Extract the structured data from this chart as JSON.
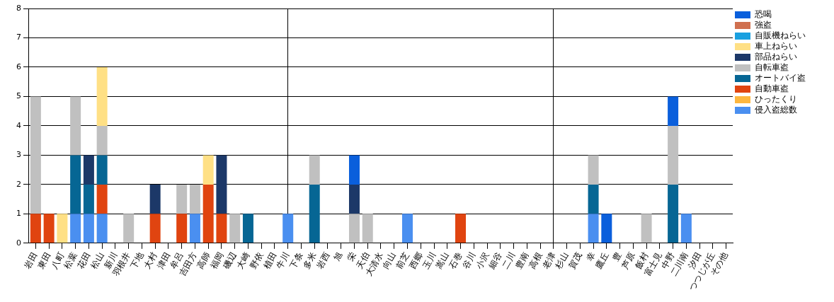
{
  "chart_data": {
    "type": "bar",
    "stacked": true,
    "grid": true,
    "legend": "top right",
    "ylim": [
      0,
      8
    ],
    "yticks": [
      0,
      1,
      2,
      3,
      4,
      5,
      6,
      7,
      8
    ],
    "categories": [
      "岩田",
      "東田",
      "八町",
      "松葉",
      "花田",
      "松山",
      "新川",
      "羽根井",
      "下地",
      "大村",
      "津田",
      "牟呂",
      "吉田方",
      "高師",
      "福岡",
      "磯辺",
      "大崎",
      "野依",
      "植田",
      "牛川",
      "下条",
      "多米",
      "岩西",
      "旭",
      "栄",
      "天伯",
      "大清水",
      "向山",
      "前芝",
      "西郷",
      "玉川",
      "嵩山",
      "石巻",
      "谷川",
      "小沢",
      "細谷",
      "二川",
      "豊南",
      "高根",
      "老津",
      "杉山",
      "賀茂",
      "幸",
      "鷹丘",
      "豊",
      "芦原",
      "飯村",
      "富士見",
      "中野",
      "二川南",
      "汐田",
      "つつじが丘",
      "その他"
    ],
    "series": [
      {
        "name": "侵入盗総数",
        "color": "#4a8ff0",
        "values": [
          0,
          0,
          0,
          1,
          1,
          1,
          0,
          0,
          0,
          0,
          0,
          0,
          1,
          0,
          0,
          0,
          0,
          0,
          0,
          1,
          0,
          0,
          0,
          0,
          0,
          0,
          0,
          0,
          1,
          0,
          0,
          0,
          0,
          0,
          0,
          0,
          0,
          0,
          0,
          0,
          0,
          0,
          1,
          0,
          0,
          0,
          0,
          0,
          0,
          1,
          0,
          0,
          0
        ]
      },
      {
        "name": "ひったくり",
        "color": "#fdb740",
        "values": [
          0,
          0,
          0,
          0,
          0,
          0,
          0,
          0,
          0,
          0,
          0,
          0,
          0,
          0,
          0,
          0,
          0,
          0,
          0,
          0,
          0,
          0,
          0,
          0,
          0,
          0,
          0,
          0,
          0,
          0,
          0,
          0,
          0,
          0,
          0,
          0,
          0,
          0,
          0,
          0,
          0,
          0,
          0,
          0,
          0,
          0,
          0,
          0,
          0,
          0,
          0,
          0,
          0
        ]
      },
      {
        "name": "自動車盗",
        "color": "#e04410",
        "values": [
          1,
          1,
          0,
          0,
          0,
          1,
          0,
          0,
          0,
          1,
          0,
          1,
          0,
          2,
          1,
          0,
          0,
          0,
          0,
          0,
          0,
          0,
          0,
          0,
          0,
          0,
          0,
          0,
          0,
          0,
          0,
          0,
          1,
          0,
          0,
          0,
          0,
          0,
          0,
          0,
          0,
          0,
          0,
          0,
          0,
          0,
          0,
          0,
          0,
          0,
          0,
          0,
          0
        ]
      },
      {
        "name": "オートバイ盗",
        "color": "#066694",
        "values": [
          0,
          0,
          0,
          2,
          1,
          1,
          0,
          0,
          0,
          0,
          0,
          0,
          0,
          0,
          0,
          0,
          1,
          0,
          0,
          0,
          0,
          2,
          0,
          0,
          0,
          0,
          0,
          0,
          0,
          0,
          0,
          0,
          0,
          0,
          0,
          0,
          0,
          0,
          0,
          0,
          0,
          0,
          1,
          0,
          0,
          0,
          0,
          0,
          2,
          0,
          0,
          0,
          0
        ]
      },
      {
        "name": "自転車盗",
        "color": "#c0c0c0",
        "values": [
          4,
          0,
          0,
          2,
          0,
          1,
          0,
          1,
          0,
          0,
          0,
          1,
          1,
          0,
          0,
          1,
          0,
          0,
          0,
          0,
          0,
          1,
          0,
          0,
          1,
          1,
          0,
          0,
          0,
          0,
          0,
          0,
          0,
          0,
          0,
          0,
          0,
          0,
          0,
          0,
          0,
          0,
          1,
          0,
          0,
          0,
          1,
          0,
          2,
          0,
          0,
          0,
          0
        ]
      },
      {
        "name": "部品ねらい",
        "color": "#1c3868",
        "values": [
          0,
          0,
          0,
          0,
          1,
          0,
          0,
          0,
          0,
          1,
          0,
          0,
          0,
          0,
          2,
          0,
          0,
          0,
          0,
          0,
          0,
          0,
          0,
          0,
          1,
          0,
          0,
          0,
          0,
          0,
          0,
          0,
          0,
          0,
          0,
          0,
          0,
          0,
          0,
          0,
          0,
          0,
          0,
          0,
          0,
          0,
          0,
          0,
          0,
          0,
          0,
          0,
          0
        ]
      },
      {
        "name": "車上ねらい",
        "color": "#ffe085",
        "values": [
          0,
          0,
          1,
          0,
          0,
          2,
          0,
          0,
          0,
          0,
          0,
          0,
          0,
          1,
          0,
          0,
          0,
          0,
          0,
          0,
          0,
          0,
          0,
          0,
          0,
          0,
          0,
          0,
          0,
          0,
          0,
          0,
          0,
          0,
          0,
          0,
          0,
          0,
          0,
          0,
          0,
          0,
          0,
          0,
          0,
          0,
          0,
          0,
          0,
          0,
          0,
          0,
          0
        ]
      },
      {
        "name": "自販機ねらい",
        "color": "#1aa0e0",
        "values": [
          0,
          0,
          0,
          0,
          0,
          0,
          0,
          0,
          0,
          0,
          0,
          0,
          0,
          0,
          0,
          0,
          0,
          0,
          0,
          0,
          0,
          0,
          0,
          0,
          0,
          0,
          0,
          0,
          0,
          0,
          0,
          0,
          0,
          0,
          0,
          0,
          0,
          0,
          0,
          0,
          0,
          0,
          0,
          0,
          0,
          0,
          0,
          0,
          0,
          0,
          0,
          0,
          0
        ]
      },
      {
        "name": "強盗",
        "color": "#d0704f",
        "values": [
          0,
          0,
          0,
          0,
          0,
          0,
          0,
          0,
          0,
          0,
          0,
          0,
          0,
          0,
          0,
          0,
          0,
          0,
          0,
          0,
          0,
          0,
          0,
          0,
          0,
          0,
          0,
          0,
          0,
          0,
          0,
          0,
          0,
          0,
          0,
          0,
          0,
          0,
          0,
          0,
          0,
          0,
          0,
          0,
          0,
          0,
          0,
          0,
          0,
          0,
          0,
          0,
          0
        ]
      },
      {
        "name": "恐喝",
        "color": "#0a5fdc",
        "values": [
          0,
          0,
          0,
          0,
          0,
          0,
          0,
          0,
          0,
          0,
          0,
          0,
          0,
          0,
          0,
          0,
          0,
          0,
          0,
          0,
          0,
          0,
          0,
          0,
          1,
          0,
          0,
          0,
          0,
          0,
          0,
          0,
          0,
          0,
          0,
          0,
          0,
          0,
          0,
          0,
          0,
          0,
          0,
          1,
          0,
          0,
          0,
          0,
          1,
          0,
          0,
          0,
          0
        ]
      }
    ]
  }
}
